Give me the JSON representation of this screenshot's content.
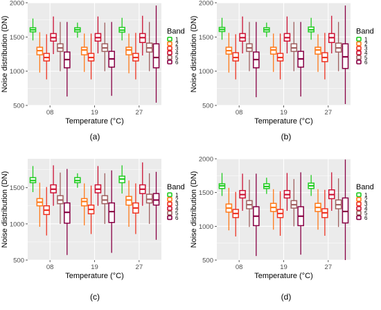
{
  "figure": {
    "band_colors": [
      "#22cc22",
      "#ff7a1a",
      "#ee3322",
      "#cc1133",
      "#a06060",
      "#880044"
    ]
  },
  "chart_data": [
    {
      "type": "box",
      "caption": "(a)",
      "xlabel": "Temperature (°C)",
      "ylabel": "Noise distribution (DN)",
      "categories": [
        "08",
        "19",
        "27"
      ],
      "ylim": [
        500,
        2000
      ],
      "yticks": [
        500,
        1000,
        1500,
        2000
      ],
      "grid": true,
      "legend": {
        "title": "Band",
        "position": "right",
        "labels": [
          "1",
          "2",
          "3",
          "4",
          "5",
          "6"
        ]
      },
      "series": [
        {
          "name": "1",
          "boxes": [
            {
              "min": 1450,
              "q1": 1575,
              "median": 1605,
              "q3": 1635,
              "max": 1770
            },
            {
              "min": 1490,
              "q1": 1575,
              "median": 1605,
              "q3": 1635,
              "max": 1710
            },
            {
              "min": 1450,
              "q1": 1570,
              "median": 1600,
              "q3": 1640,
              "max": 1780
            }
          ]
        },
        {
          "name": "2",
          "boxes": [
            {
              "min": 980,
              "q1": 1240,
              "median": 1300,
              "q3": 1350,
              "max": 1570
            },
            {
              "min": 990,
              "q1": 1240,
              "median": 1310,
              "q3": 1350,
              "max": 1550
            },
            {
              "min": 970,
              "q1": 1240,
              "median": 1310,
              "q3": 1350,
              "max": 1550
            }
          ]
        },
        {
          "name": "3",
          "boxes": [
            {
              "min": 880,
              "q1": 1150,
              "median": 1200,
              "q3": 1260,
              "max": 1540
            },
            {
              "min": 880,
              "q1": 1150,
              "median": 1200,
              "q3": 1260,
              "max": 1550
            },
            {
              "min": 880,
              "q1": 1150,
              "median": 1200,
              "q3": 1260,
              "max": 1560
            }
          ]
        },
        {
          "name": "4",
          "boxes": [
            {
              "min": 1250,
              "q1": 1440,
              "median": 1490,
              "q3": 1550,
              "max": 1800
            },
            {
              "min": 1260,
              "q1": 1440,
              "median": 1490,
              "q3": 1550,
              "max": 1800
            },
            {
              "min": 1230,
              "q1": 1420,
              "median": 1490,
              "q3": 1550,
              "max": 1810
            }
          ]
        },
        {
          "name": "5",
          "boxes": [
            {
              "min": 1000,
              "q1": 1290,
              "median": 1340,
              "q3": 1400,
              "max": 1720
            },
            {
              "min": 1000,
              "q1": 1290,
              "median": 1340,
              "q3": 1400,
              "max": 1710
            },
            {
              "min": 1000,
              "q1": 1280,
              "median": 1340,
              "q3": 1410,
              "max": 1720
            }
          ]
        },
        {
          "name": "6",
          "boxes": [
            {
              "min": 630,
              "q1": 1050,
              "median": 1170,
              "q3": 1280,
              "max": 1720
            },
            {
              "min": 640,
              "q1": 1060,
              "median": 1180,
              "q3": 1290,
              "max": 1720
            },
            {
              "min": 540,
              "q1": 1050,
              "median": 1200,
              "q3": 1400,
              "max": 1960
            }
          ]
        }
      ]
    },
    {
      "type": "box",
      "caption": "(b)",
      "xlabel": "Temperature (°C)",
      "ylabel": "Noise distribution (DN)",
      "categories": [
        "08",
        "19",
        "27"
      ],
      "ylim": [
        500,
        2000
      ],
      "yticks": [
        500,
        1000,
        1500,
        2000
      ],
      "grid": true,
      "legend": {
        "title": "Band",
        "position": "right",
        "labels": [
          "1",
          "2",
          "3",
          "4",
          "5",
          "6"
        ]
      },
      "series": [
        {
          "name": "1",
          "boxes": [
            {
              "min": 1460,
              "q1": 1580,
              "median": 1610,
              "q3": 1640,
              "max": 1780
            },
            {
              "min": 1500,
              "q1": 1575,
              "median": 1605,
              "q3": 1635,
              "max": 1710
            },
            {
              "min": 1460,
              "q1": 1575,
              "median": 1605,
              "q3": 1645,
              "max": 1780
            }
          ]
        },
        {
          "name": "2",
          "boxes": [
            {
              "min": 980,
              "q1": 1250,
              "median": 1300,
              "q3": 1350,
              "max": 1560
            },
            {
              "min": 990,
              "q1": 1250,
              "median": 1310,
              "q3": 1350,
              "max": 1550
            },
            {
              "min": 990,
              "q1": 1250,
              "median": 1310,
              "q3": 1350,
              "max": 1540
            }
          ]
        },
        {
          "name": "3",
          "boxes": [
            {
              "min": 880,
              "q1": 1150,
              "median": 1200,
              "q3": 1270,
              "max": 1540
            },
            {
              "min": 880,
              "q1": 1150,
              "median": 1200,
              "q3": 1260,
              "max": 1550
            },
            {
              "min": 880,
              "q1": 1140,
              "median": 1200,
              "q3": 1270,
              "max": 1560
            }
          ]
        },
        {
          "name": "4",
          "boxes": [
            {
              "min": 1260,
              "q1": 1440,
              "median": 1490,
              "q3": 1550,
              "max": 1800
            },
            {
              "min": 1260,
              "q1": 1440,
              "median": 1490,
              "q3": 1550,
              "max": 1800
            },
            {
              "min": 1260,
              "q1": 1420,
              "median": 1490,
              "q3": 1550,
              "max": 1810
            }
          ]
        },
        {
          "name": "5",
          "boxes": [
            {
              "min": 1000,
              "q1": 1290,
              "median": 1340,
              "q3": 1400,
              "max": 1720
            },
            {
              "min": 1000,
              "q1": 1290,
              "median": 1340,
              "q3": 1400,
              "max": 1720
            },
            {
              "min": 1000,
              "q1": 1280,
              "median": 1340,
              "q3": 1410,
              "max": 1720
            }
          ]
        },
        {
          "name": "6",
          "boxes": [
            {
              "min": 620,
              "q1": 1050,
              "median": 1170,
              "q3": 1280,
              "max": 1720
            },
            {
              "min": 630,
              "q1": 1060,
              "median": 1180,
              "q3": 1290,
              "max": 1720
            },
            {
              "min": 520,
              "q1": 1040,
              "median": 1210,
              "q3": 1400,
              "max": 1960
            }
          ]
        }
      ]
    },
    {
      "type": "box",
      "caption": "(c)",
      "xlabel": "Temperature (°C)",
      "ylabel": "Noise distribution (DN)",
      "categories": [
        "08",
        "19",
        "27"
      ],
      "ylim": [
        500,
        1900
      ],
      "yticks": [
        500,
        1000,
        1500
      ],
      "grid": true,
      "legend": {
        "title": "Band",
        "position": "right",
        "labels": [
          "1",
          "2",
          "3",
          "4",
          "5",
          "6"
        ]
      },
      "series": [
        {
          "name": "1",
          "boxes": [
            {
              "min": 1440,
              "q1": 1570,
              "median": 1600,
              "q3": 1640,
              "max": 1800
            },
            {
              "min": 1500,
              "q1": 1570,
              "median": 1600,
              "q3": 1640,
              "max": 1700
            },
            {
              "min": 1420,
              "q1": 1570,
              "median": 1620,
              "q3": 1660,
              "max": 1810
            }
          ]
        },
        {
          "name": "2",
          "boxes": [
            {
              "min": 960,
              "q1": 1250,
              "median": 1300,
              "q3": 1350,
              "max": 1570
            },
            {
              "min": 980,
              "q1": 1250,
              "median": 1310,
              "q3": 1350,
              "max": 1560
            },
            {
              "min": 960,
              "q1": 1260,
              "median": 1330,
              "q3": 1380,
              "max": 1600
            }
          ]
        },
        {
          "name": "3",
          "boxes": [
            {
              "min": 840,
              "q1": 1130,
              "median": 1190,
              "q3": 1250,
              "max": 1510
            },
            {
              "min": 860,
              "q1": 1140,
              "median": 1200,
              "q3": 1260,
              "max": 1530
            },
            {
              "min": 860,
              "q1": 1150,
              "median": 1220,
              "q3": 1290,
              "max": 1560
            }
          ]
        },
        {
          "name": "4",
          "boxes": [
            {
              "min": 1250,
              "q1": 1430,
              "median": 1480,
              "q3": 1540,
              "max": 1810
            },
            {
              "min": 1250,
              "q1": 1430,
              "median": 1480,
              "q3": 1540,
              "max": 1800
            },
            {
              "min": 1250,
              "q1": 1420,
              "median": 1480,
              "q3": 1540,
              "max": 1850
            }
          ]
        },
        {
          "name": "5",
          "boxes": [
            {
              "min": 1000,
              "q1": 1280,
              "median": 1330,
              "q3": 1390,
              "max": 1710
            },
            {
              "min": 1000,
              "q1": 1280,
              "median": 1330,
              "q3": 1390,
              "max": 1700
            },
            {
              "min": 1000,
              "q1": 1290,
              "median": 1340,
              "q3": 1410,
              "max": 1700
            }
          ]
        },
        {
          "name": "6",
          "boxes": [
            {
              "min": 570,
              "q1": 1010,
              "median": 1160,
              "q3": 1290,
              "max": 1760
            },
            {
              "min": 600,
              "q1": 1020,
              "median": 1170,
              "q3": 1290,
              "max": 1740
            },
            {
              "min": 780,
              "q1": 1260,
              "median": 1330,
              "q3": 1420,
              "max": 1720
            }
          ]
        }
      ]
    },
    {
      "type": "box",
      "caption": "(d)",
      "xlabel": "Temperature (°C)",
      "ylabel": "Noise distribution (DN)",
      "categories": [
        "08",
        "19",
        "27"
      ],
      "ylim": [
        500,
        2000
      ],
      "yticks": [
        500,
        1000,
        1500,
        2000
      ],
      "grid": true,
      "legend": {
        "title": "Band",
        "position": "right",
        "labels": [
          "1",
          "2",
          "3",
          "4",
          "5",
          "6"
        ]
      },
      "series": [
        {
          "name": "1",
          "boxes": [
            {
              "min": 1450,
              "q1": 1560,
              "median": 1600,
              "q3": 1630,
              "max": 1790
            },
            {
              "min": 1480,
              "q1": 1560,
              "median": 1590,
              "q3": 1630,
              "max": 1720
            },
            {
              "min": 1450,
              "q1": 1560,
              "median": 1600,
              "q3": 1640,
              "max": 1760
            }
          ]
        },
        {
          "name": "2",
          "boxes": [
            {
              "min": 940,
              "q1": 1210,
              "median": 1270,
              "q3": 1330,
              "max": 1570
            },
            {
              "min": 950,
              "q1": 1220,
              "median": 1280,
              "q3": 1340,
              "max": 1550
            },
            {
              "min": 950,
              "q1": 1220,
              "median": 1280,
              "q3": 1340,
              "max": 1550
            }
          ]
        },
        {
          "name": "3",
          "boxes": [
            {
              "min": 850,
              "q1": 1130,
              "median": 1190,
              "q3": 1250,
              "max": 1510
            },
            {
              "min": 860,
              "q1": 1130,
              "median": 1190,
              "q3": 1250,
              "max": 1520
            },
            {
              "min": 860,
              "q1": 1130,
              "median": 1200,
              "q3": 1260,
              "max": 1540
            }
          ]
        },
        {
          "name": "4",
          "boxes": [
            {
              "min": 1230,
              "q1": 1420,
              "median": 1470,
              "q3": 1530,
              "max": 1780
            },
            {
              "min": 1230,
              "q1": 1420,
              "median": 1470,
              "q3": 1530,
              "max": 1790
            },
            {
              "min": 1230,
              "q1": 1410,
              "median": 1470,
              "q3": 1540,
              "max": 1800
            }
          ]
        },
        {
          "name": "5",
          "boxes": [
            {
              "min": 990,
              "q1": 1260,
              "median": 1320,
              "q3": 1380,
              "max": 1690
            },
            {
              "min": 1000,
              "q1": 1270,
              "median": 1320,
              "q3": 1380,
              "max": 1700
            },
            {
              "min": 990,
              "q1": 1260,
              "median": 1320,
              "q3": 1390,
              "max": 1710
            }
          ]
        },
        {
          "name": "6",
          "boxes": [
            {
              "min": 560,
              "q1": 1010,
              "median": 1150,
              "q3": 1290,
              "max": 1780
            },
            {
              "min": 580,
              "q1": 1010,
              "median": 1150,
              "q3": 1290,
              "max": 1800
            },
            {
              "min": 500,
              "q1": 1050,
              "median": 1220,
              "q3": 1420,
              "max": 1990
            }
          ]
        }
      ]
    }
  ]
}
